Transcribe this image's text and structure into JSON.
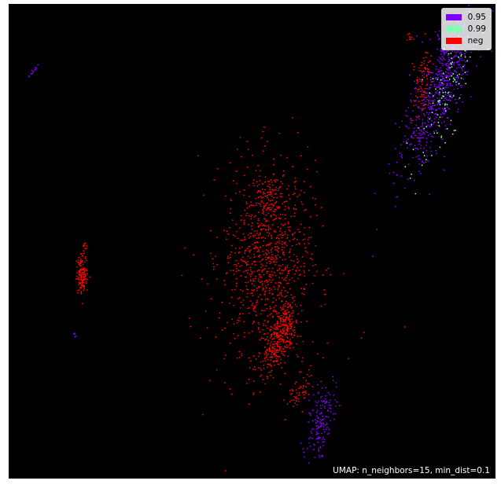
{
  "chart_data": {
    "type": "scatter",
    "title": "",
    "xlabel": "",
    "ylabel": "",
    "background": "#000000",
    "axes_ticks": "none",
    "legend_position": "top-right",
    "annotation": "UMAP: n_neighbors=15, min_dist=0.1",
    "series": [
      {
        "name": "0.95",
        "color": "#7f00ff",
        "clusters": [
          {
            "cx": 0.89,
            "cy": 0.83,
            "sx": 0.025,
            "sy": 0.09,
            "tilt": 0.35,
            "count": 700
          },
          {
            "cx": 0.64,
            "cy": 0.12,
            "sx": 0.012,
            "sy": 0.04,
            "tilt": 0.2,
            "count": 160
          },
          {
            "cx": 0.05,
            "cy": 0.86,
            "sx": 0.002,
            "sy": 0.008,
            "tilt": 0.8,
            "count": 12
          },
          {
            "cx": 0.135,
            "cy": 0.3,
            "sx": 0.001,
            "sy": 0.003,
            "tilt": 0,
            "count": 5
          },
          {
            "cx": 0.645,
            "cy": 0.045,
            "sx": 0.001,
            "sy": 0.002,
            "tilt": 0,
            "count": 2
          }
        ]
      },
      {
        "name": "0.99",
        "color": "#80ffb4",
        "clusters": [
          {
            "cx": 0.9,
            "cy": 0.81,
            "sx": 0.02,
            "sy": 0.08,
            "tilt": 0.35,
            "count": 110
          }
        ]
      },
      {
        "name": "neg",
        "color": "#ff0000",
        "clusters": [
          {
            "cx": 0.53,
            "cy": 0.47,
            "sx": 0.045,
            "sy": 0.1,
            "tilt": 0.05,
            "count": 900
          },
          {
            "cx": 0.555,
            "cy": 0.3,
            "sx": 0.015,
            "sy": 0.04,
            "tilt": 0.3,
            "count": 380
          },
          {
            "cx": 0.54,
            "cy": 0.59,
            "sx": 0.012,
            "sy": 0.02,
            "tilt": 0,
            "count": 60
          },
          {
            "cx": 0.6,
            "cy": 0.19,
            "sx": 0.01,
            "sy": 0.03,
            "tilt": 0.4,
            "count": 60
          },
          {
            "cx": 0.15,
            "cy": 0.43,
            "sx": 0.006,
            "sy": 0.02,
            "tilt": 0,
            "count": 140
          },
          {
            "cx": 0.155,
            "cy": 0.49,
            "sx": 0.002,
            "sy": 0.008,
            "tilt": 0,
            "count": 12
          },
          {
            "cx": 0.85,
            "cy": 0.84,
            "sx": 0.008,
            "sy": 0.04,
            "tilt": 0.1,
            "count": 90
          },
          {
            "cx": 0.825,
            "cy": 0.93,
            "sx": 0.003,
            "sy": 0.005,
            "tilt": 0,
            "count": 12
          },
          {
            "cx": 0.55,
            "cy": 0.35,
            "sx": 0.11,
            "sy": 0.17,
            "tilt": 0,
            "count": 40
          }
        ]
      }
    ]
  }
}
